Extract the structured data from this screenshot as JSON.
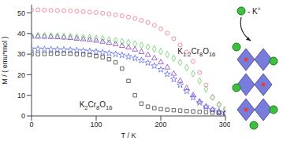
{
  "chart_data": {
    "type": "scatter",
    "x_label": "T / K",
    "y_label": "M / ( emu*mol )",
    "x": [
      0,
      10,
      20,
      30,
      40,
      50,
      60,
      70,
      80,
      90,
      100,
      110,
      120,
      130,
      140,
      150,
      160,
      170,
      180,
      190,
      200,
      210,
      220,
      230,
      240,
      250,
      260,
      270,
      280,
      290,
      300
    ],
    "series": [
      {
        "color": "#f2708c",
        "marker": "circle",
        "values": [
          51.5,
          51.5,
          51.4,
          51.3,
          51.2,
          51.1,
          51,
          50.8,
          50.6,
          50.4,
          50.2,
          49.9,
          49.5,
          49.1,
          48.6,
          48,
          47.3,
          46.4,
          45.3,
          44,
          42.3,
          40.2,
          37.5,
          34.5,
          31,
          26.5,
          21,
          15,
          9,
          5.5,
          3.5
        ]
      },
      {
        "color": "#5fd35f",
        "marker": "diamond",
        "values": [
          39,
          39,
          39,
          38.9,
          38.8,
          38.7,
          38.6,
          38.4,
          38.2,
          38,
          37.7,
          37.4,
          37,
          36.6,
          36.1,
          35.6,
          35,
          34.3,
          33.5,
          32.5,
          31.3,
          29.8,
          28,
          26,
          23.5,
          20.5,
          17,
          13,
          9,
          5.5,
          3
        ]
      },
      {
        "color": "#8a3fc8",
        "marker": "triangle",
        "values": [
          38.5,
          38.5,
          38.4,
          38.3,
          38.2,
          38,
          37.8,
          37.5,
          37.2,
          36.9,
          36.5,
          36,
          35.5,
          34.8,
          34,
          33.2,
          32.2,
          31,
          29.6,
          28,
          26,
          23.5,
          20.5,
          17,
          13.5,
          10,
          7,
          4.5,
          3,
          2,
          1.5
        ]
      },
      {
        "color": "#6472e6",
        "marker": "star",
        "values": [
          32.5,
          32.5,
          32.4,
          32.3,
          32.2,
          32.1,
          32,
          31.8,
          31.6,
          31.4,
          31.1,
          30.8,
          30.4,
          30,
          29.5,
          28.8,
          28,
          27,
          25.8,
          24.3,
          22.5,
          20.3,
          17.8,
          15,
          12,
          9,
          6.5,
          4.5,
          3,
          2,
          1.5
        ]
      },
      {
        "color": "#404040",
        "marker": "square",
        "values": [
          30,
          30,
          30.1,
          30.2,
          30.3,
          30.3,
          30.2,
          30,
          29.8,
          29.5,
          29,
          28.5,
          27.5,
          26,
          23,
          17,
          10,
          6,
          4.5,
          3.8,
          3.3,
          3,
          2.8,
          2.6,
          2.4,
          2.2,
          2,
          1.8,
          1.6,
          1.4,
          1.2
        ]
      }
    ],
    "annotations": [
      {
        "text": "K1.2Cr8O16",
        "x": 226,
        "y": 30
      },
      {
        "text": "K2Cr8O16",
        "x": 74,
        "y": 4
      }
    ],
    "structure_label": "- K+",
    "xlim": [
      0,
      300
    ],
    "xticks": [
      0,
      100,
      200,
      300
    ],
    "ylim": [
      0,
      54
    ],
    "yticks": [
      0,
      10,
      20,
      30,
      40,
      50
    ]
  }
}
